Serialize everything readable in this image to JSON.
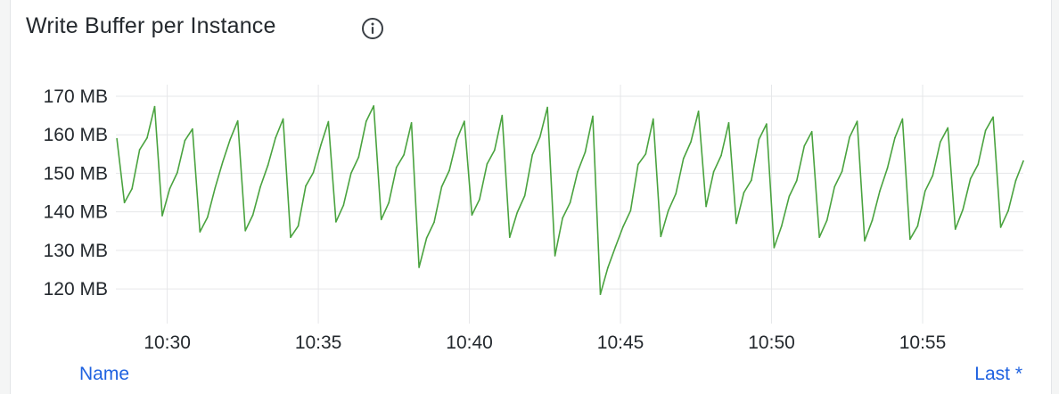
{
  "panel": {
    "title": "Write Buffer per Instance",
    "info_icon": "info-circle-icon",
    "legend": {
      "name_header": "Name",
      "last_header": "Last *",
      "color": "#1f62e0"
    }
  },
  "chart_data": {
    "type": "line",
    "title": "Write Buffer per Instance",
    "xlabel": "",
    "ylabel": "",
    "y_unit": "MB",
    "ylim": [
      111,
      173
    ],
    "xlim": [
      "10:28:18",
      "10:58:20"
    ],
    "grid": true,
    "y_ticks": [
      120,
      130,
      140,
      150,
      160,
      170
    ],
    "y_tick_labels": [
      "120 MB",
      "130 MB",
      "140 MB",
      "150 MB",
      "160 MB",
      "170 MB"
    ],
    "x_ticks": [
      "10:30",
      "10:35",
      "10:40",
      "10:45",
      "10:50",
      "10:55"
    ],
    "series": [
      {
        "color": "#4aa33f",
        "x": [
          "10:28:20",
          "10:28:35",
          "10:28:50",
          "10:29:05",
          "10:29:20",
          "10:29:35",
          "10:29:50",
          "10:30:05",
          "10:30:20",
          "10:30:35",
          "10:30:50",
          "10:31:05",
          "10:31:20",
          "10:31:35",
          "10:31:50",
          "10:32:05",
          "10:32:20",
          "10:32:35",
          "10:32:50",
          "10:33:05",
          "10:33:20",
          "10:33:35",
          "10:33:50",
          "10:34:05",
          "10:34:20",
          "10:34:35",
          "10:34:50",
          "10:35:05",
          "10:35:20",
          "10:35:35",
          "10:35:50",
          "10:36:05",
          "10:36:20",
          "10:36:35",
          "10:36:50",
          "10:37:05",
          "10:37:20",
          "10:37:35",
          "10:37:50",
          "10:38:05",
          "10:38:20",
          "10:38:35",
          "10:38:50",
          "10:39:05",
          "10:39:20",
          "10:39:35",
          "10:39:50",
          "10:40:05",
          "10:40:20",
          "10:40:35",
          "10:40:50",
          "10:41:05",
          "10:41:20",
          "10:41:35",
          "10:41:50",
          "10:42:05",
          "10:42:20",
          "10:42:35",
          "10:42:50",
          "10:43:05",
          "10:43:20",
          "10:43:35",
          "10:43:50",
          "10:44:05",
          "10:44:20",
          "10:44:35",
          "10:44:50",
          "10:45:05",
          "10:45:20",
          "10:45:35",
          "10:45:50",
          "10:46:05",
          "10:46:20",
          "10:46:35",
          "10:46:50",
          "10:47:05",
          "10:47:20",
          "10:47:35",
          "10:47:50",
          "10:48:05",
          "10:48:20",
          "10:48:35",
          "10:48:50",
          "10:49:05",
          "10:49:20",
          "10:49:35",
          "10:49:50",
          "10:50:05",
          "10:50:20",
          "10:50:35",
          "10:50:50",
          "10:51:05",
          "10:51:20",
          "10:51:35",
          "10:51:50",
          "10:52:05",
          "10:52:20",
          "10:52:35",
          "10:52:50",
          "10:53:05",
          "10:53:20",
          "10:53:35",
          "10:53:50",
          "10:54:05",
          "10:54:20",
          "10:54:35",
          "10:54:50",
          "10:55:05",
          "10:55:20",
          "10:55:35",
          "10:55:50",
          "10:56:05",
          "10:56:20",
          "10:56:35",
          "10:56:50",
          "10:57:05",
          "10:57:20",
          "10:57:35",
          "10:57:50",
          "10:58:05",
          "10:58:20"
        ],
        "values": [
          159.0,
          142.4,
          146.0,
          156.1,
          159.2,
          167.3,
          139.0,
          146.0,
          150.2,
          158.5,
          161.5,
          134.8,
          138.6,
          146.2,
          152.9,
          158.8,
          163.6,
          135.1,
          139.2,
          146.5,
          152.1,
          159.2,
          164.1,
          133.4,
          136.3,
          146.7,
          150.2,
          157.3,
          163.4,
          137.4,
          141.7,
          150.0,
          154.2,
          163.5,
          167.5,
          138.0,
          142.4,
          151.5,
          154.8,
          163.1,
          125.6,
          133.2,
          137.3,
          146.5,
          150.7,
          158.8,
          163.5,
          139.2,
          143.2,
          152.4,
          156.0,
          165.0,
          133.4,
          139.8,
          144.2,
          154.8,
          159.4,
          167.1,
          128.6,
          138.4,
          142.4,
          150.4,
          155.5,
          164.8,
          118.6,
          125.5,
          130.9,
          136.1,
          140.3,
          152.3,
          155.0,
          164.1,
          133.6,
          140.3,
          144.7,
          153.8,
          158.2,
          166.1,
          141.4,
          150.4,
          154.6,
          163.1,
          137.0,
          145.0,
          148.2,
          158.8,
          162.8,
          130.7,
          136.3,
          144.0,
          148.1,
          157.1,
          160.8,
          133.4,
          137.8,
          146.5,
          150.5,
          159.4,
          163.5,
          132.5,
          137.8,
          145.4,
          151.3,
          159.2,
          164.1,
          132.9,
          136.3,
          145.4,
          149.4,
          158.1,
          161.8,
          135.5,
          140.6,
          148.6,
          152.3,
          161.1,
          164.6,
          136.0,
          140.3,
          148.1,
          153.2
        ]
      }
    ]
  }
}
